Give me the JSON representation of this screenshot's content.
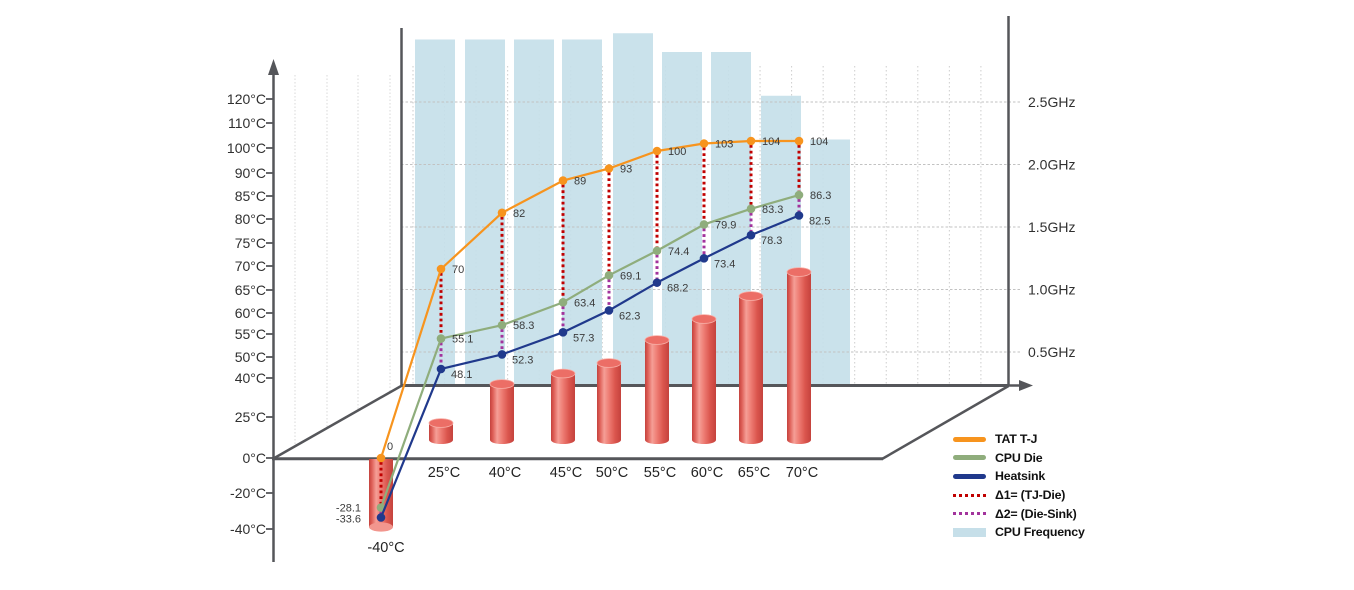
{
  "chart_data": {
    "type": "composite-3d",
    "title": "",
    "categories": [
      "-40°C",
      "25°C",
      "40°C",
      "45°C",
      "50°C",
      "55°C",
      "60°C",
      "65°C",
      "70°C"
    ],
    "category_values": [
      -40,
      25,
      40,
      45,
      50,
      55,
      60,
      65,
      70
    ],
    "left_axis": {
      "unit": "°C",
      "tick_labels": [
        "120°C",
        "110°C",
        "100°C",
        "90°C",
        "85°C",
        "80°C",
        "75°C",
        "70°C",
        "65°C",
        "60°C",
        "55°C",
        "50°C",
        "40°C",
        "25°C",
        "0°C",
        "-20°C",
        "-40°C"
      ],
      "tick_values": [
        120,
        110,
        100,
        90,
        85,
        80,
        75,
        70,
        65,
        60,
        55,
        50,
        40,
        25,
        0,
        -20,
        -40
      ]
    },
    "right_axis": {
      "unit": "GHz",
      "tick_labels": [
        "2.5GHz",
        "2.0GHz",
        "1.5GHz",
        "1.0GHz",
        "0.5GHz"
      ],
      "tick_values": [
        2.5,
        2.0,
        1.5,
        1.0,
        0.5
      ]
    },
    "series": [
      {
        "name": "TAT T-J",
        "type": "line",
        "color": "#F7941E",
        "values": [
          0,
          70,
          82,
          89,
          93,
          100,
          103,
          104,
          104
        ],
        "labels": [
          "0",
          "70",
          "82",
          "89",
          "93",
          "100",
          "103",
          "104",
          "104"
        ]
      },
      {
        "name": "CPU Die",
        "type": "line",
        "color": "#8FAD7C",
        "values": [
          -28.1,
          55.1,
          58.3,
          63.4,
          69.1,
          74.4,
          79.9,
          83.3,
          86.3
        ],
        "labels": [
          "-28.1",
          "55.1",
          "58.3",
          "63.4",
          "69.1",
          "74.4",
          "79.9",
          "83.3",
          "86.3"
        ]
      },
      {
        "name": "Heatsink",
        "type": "line",
        "color": "#20398C",
        "values": [
          -33.6,
          48.1,
          52.3,
          57.3,
          62.3,
          68.2,
          73.4,
          78.3,
          82.5
        ],
        "labels": [
          "-33.6",
          "48.1",
          "52.3",
          "57.3",
          "62.3",
          "68.2",
          "73.4",
          "78.3",
          "82.5"
        ]
      },
      {
        "name": "Δ1= (TJ-Die)",
        "type": "delta-dotted",
        "color": "#C00000",
        "between": [
          "TAT T-J",
          "CPU Die"
        ]
      },
      {
        "name": "Δ2= (Die-Sink)",
        "type": "delta-dotted",
        "color": "#A2339C",
        "between": [
          "CPU Die",
          "Heatsink"
        ]
      },
      {
        "name": "CPU Frequency",
        "type": "background-bar",
        "color": "#C6DFE9",
        "unit": "GHz",
        "values": [
          3.0,
          3.0,
          3.0,
          3.0,
          3.05,
          2.9,
          2.9,
          2.55,
          2.2
        ]
      },
      {
        "name": "Ambient temperature cylinders",
        "type": "cylinder-bar",
        "color": "#E4574F",
        "values": [
          -40,
          25,
          40,
          45,
          50,
          55,
          60,
          65,
          70
        ]
      }
    ],
    "legend": [
      {
        "label": "TAT T-J",
        "swatch": "line",
        "color": "#F7941E"
      },
      {
        "label": "CPU Die",
        "swatch": "line",
        "color": "#8FAD7C"
      },
      {
        "label": "Heatsink",
        "swatch": "line",
        "color": "#20398C"
      },
      {
        "label": "Δ1= (TJ-Die)",
        "swatch": "dotted",
        "color": "#C00000"
      },
      {
        "label": "Δ2= (Die-Sink)",
        "swatch": "dotted",
        "color": "#A2339C"
      },
      {
        "label": "CPU Frequency",
        "swatch": "bar",
        "color": "#C6DFE9"
      }
    ]
  }
}
